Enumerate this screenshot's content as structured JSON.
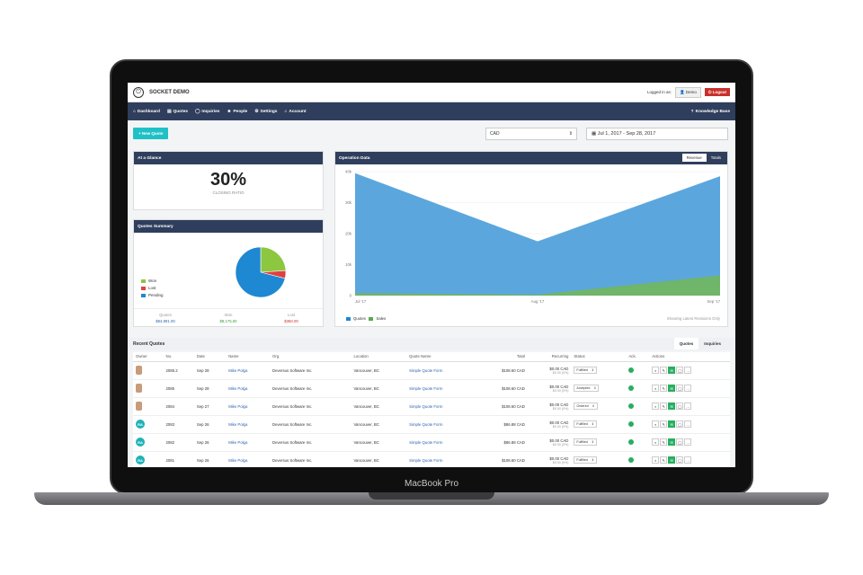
{
  "device": {
    "label": "MacBook Pro"
  },
  "app": {
    "title": "SOCKET DEMO",
    "logged_in_as": "Logged in as:",
    "user": "Demo",
    "logout": "Logout"
  },
  "nav": {
    "items": [
      "Dashboard",
      "Quotes",
      "Inquiries",
      "People",
      "Settings",
      "Account"
    ],
    "knowledge_base": "Knowledge Base"
  },
  "toolbar": {
    "new_quote": "+ New Quote",
    "currency": "CAD",
    "date_range": "Jul 1, 2017  -  Sep 28, 2017"
  },
  "glance": {
    "title": "At a Glance",
    "value": "30%",
    "label": "CLOSING RATIO"
  },
  "quotes_summary": {
    "title": "Quotes Summary",
    "legend": [
      "Won",
      "Lost",
      "Pending"
    ],
    "colors": {
      "won": "#8dc63f",
      "lost": "#e04040",
      "pending": "#1e88d2"
    },
    "footer": [
      {
        "label": "Quotes",
        "value": "$94,891.00"
      },
      {
        "label": "Won",
        "value": "$8,175.00"
      },
      {
        "label": "Lost",
        "value": "$350.00"
      }
    ]
  },
  "operation": {
    "title": "Operation Data",
    "tabs": [
      "Revenue",
      "Totals"
    ],
    "legend": [
      "Quotes",
      "Sales"
    ],
    "note": "Showing Latest Revisions Only"
  },
  "chart_data": [
    {
      "type": "pie",
      "labels": [
        "Won",
        "Lost",
        "Pending"
      ],
      "values": [
        24,
        5,
        71
      ]
    },
    {
      "type": "area",
      "x": [
        "Jul '17",
        "Aug '17",
        "Sep '17"
      ],
      "y_ticks": [
        "0",
        "10k",
        "20k",
        "30k",
        "40k"
      ],
      "ylim": [
        0,
        40000
      ],
      "series": [
        {
          "name": "Quotes",
          "values": [
            39500,
            17500,
            38500
          ],
          "color": "#5ba7dd"
        },
        {
          "name": "Sales",
          "values": [
            800,
            300,
            6500
          ],
          "color": "#6fb56a"
        }
      ]
    }
  ],
  "recent": {
    "title": "Recent Quotes",
    "tabs": [
      "Quotes",
      "Inquiries"
    ],
    "columns": [
      "Owner",
      "No.",
      "Date",
      "Name",
      "Org.",
      "Location",
      "Quote Name",
      "Total",
      "Recurring",
      "Status",
      "Ack.",
      "Actions"
    ],
    "rows": [
      {
        "owner": "",
        "no": "2085.2",
        "date": "Sep 28",
        "name": "Mike Polga",
        "org": "Deversus Software Inc.",
        "location": "Vancouver, BC",
        "quote": "Simple Quote Form",
        "total": "$108.60 CAD",
        "rec": "$0.00 CAD",
        "rec_sub": "$0.00 (0%)",
        "status": "Fulfilled"
      },
      {
        "owner": "",
        "no": "2085",
        "date": "Sep 28",
        "name": "Mike Polga",
        "org": "Deversus Software Inc.",
        "location": "Vancouver, BC",
        "quote": "Simple Quote Form",
        "total": "$108.60 CAD",
        "rec": "$0.00 CAD",
        "rec_sub": "$0.00 (0%)",
        "status": "Accepted"
      },
      {
        "owner": "",
        "no": "2084",
        "date": "Sep 27",
        "name": "Mike Polga",
        "org": "Deversus Software Inc.",
        "location": "Vancouver, BC",
        "quote": "Simple Quote Form",
        "total": "$108.60 CAD",
        "rec": "$0.00 CAD",
        "rec_sub": "$0.00 (0%)",
        "status": "Ordered"
      },
      {
        "owner": "RA",
        "no": "2083",
        "date": "Sep 26",
        "name": "Mike Polga",
        "org": "Deversus Software Inc.",
        "location": "Vancouver, BC",
        "quote": "Simple Quote Form",
        "total": "$86.88 CAD",
        "rec": "$0.00 CAD",
        "rec_sub": "$0.00 (0%)",
        "status": "Fulfilled"
      },
      {
        "owner": "RA",
        "no": "2082",
        "date": "Sep 26",
        "name": "Mike Polga",
        "org": "Deversus Software Inc.",
        "location": "Vancouver, BC",
        "quote": "Simple Quote Form",
        "total": "$86.88 CAD",
        "rec": "$0.00 CAD",
        "rec_sub": "$0.00 (0%)",
        "status": "Fulfilled"
      },
      {
        "owner": "RA",
        "no": "2081",
        "date": "Sep 26",
        "name": "Mike Polga",
        "org": "Deversus Software Inc.",
        "location": "Vancouver, BC",
        "quote": "Simple Quote Form",
        "total": "$108.60 CAD",
        "rec": "$0.00 CAD",
        "rec_sub": "$0.00 (0%)",
        "status": "Fulfilled"
      }
    ]
  }
}
